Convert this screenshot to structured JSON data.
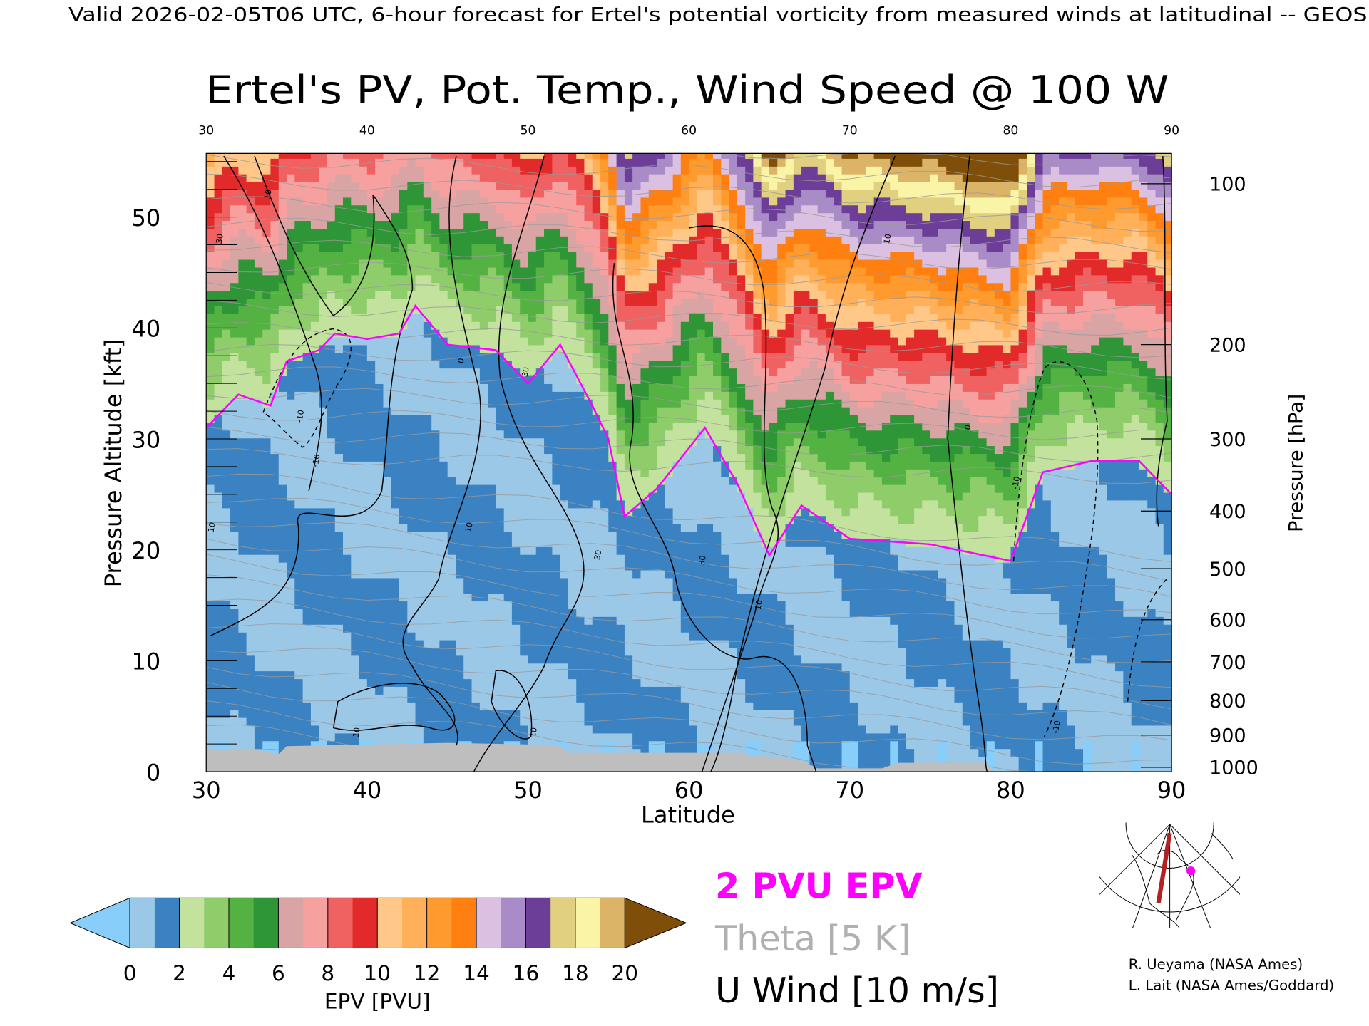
{
  "header": {
    "caption": "Valid 2026-02-05T06 UTC, 6-hour forecast for Ertel's potential vorticity from measured winds at latitudinal -- GEOS"
  },
  "chart_data": {
    "type": "heatmap",
    "title": "Ertel's PV, Pot. Temp., Wind Speed @ 100 W",
    "xlabel": "Latitude",
    "ylabel": "Pressure Altitude [kft]",
    "y2label": "Pressure [hPa]",
    "xlim": [
      30,
      90
    ],
    "ylim": [
      0,
      56
    ],
    "x_ticks": [
      "30",
      "40",
      "50",
      "60",
      "70",
      "80",
      "90"
    ],
    "x_tick_values": [
      30,
      40,
      50,
      60,
      70,
      80,
      90
    ],
    "y_ticks": [
      "0",
      "10",
      "20",
      "30",
      "40",
      "50"
    ],
    "y_tick_values": [
      0,
      10,
      20,
      30,
      40,
      50
    ],
    "pressure_ticks": [
      {
        "label": "100",
        "kft": 53
      },
      {
        "label": "200",
        "kft": 38.5
      },
      {
        "label": "300",
        "kft": 30
      },
      {
        "label": "400",
        "kft": 23.5
      },
      {
        "label": "500",
        "kft": 18.3
      },
      {
        "label": "600",
        "kft": 13.7
      },
      {
        "label": "700",
        "kft": 9.9
      },
      {
        "label": "800",
        "kft": 6.4
      },
      {
        "label": "900",
        "kft": 3.3
      },
      {
        "label": "1000",
        "kft": 0.4
      }
    ],
    "tropopause_2pvu": {
      "name": "2 PVU EPV",
      "lat": [
        30,
        32,
        34,
        35,
        37,
        38,
        40,
        42,
        43,
        45,
        48,
        50,
        52,
        54,
        55,
        56,
        58,
        61,
        63,
        65,
        67,
        70,
        75,
        80,
        82,
        85,
        88,
        90
      ],
      "kft": [
        31,
        34,
        33,
        37,
        38,
        39.5,
        39,
        39.5,
        42,
        38.5,
        38,
        35,
        38.5,
        33,
        30,
        23,
        25.5,
        31,
        26,
        19.5,
        24,
        21,
        20.5,
        19,
        27,
        28,
        28,
        25
      ]
    },
    "ground_kft": {
      "lat": [
        30,
        33,
        34.5,
        35,
        45,
        52,
        52.5,
        56,
        63,
        67,
        68,
        72,
        73,
        78.5,
        79,
        90
      ],
      "kft": [
        2,
        2,
        1.6,
        2.3,
        2.6,
        2.4,
        1.7,
        1.7,
        1.7,
        1.0,
        0.3,
        0.3,
        0.8,
        0.8,
        0,
        0
      ]
    },
    "wind_contour_labels": [
      {
        "label": "10",
        "lat": 34,
        "kft": 52
      },
      {
        "label": "30",
        "lat": 31,
        "kft": 48
      },
      {
        "label": "-10",
        "lat": 36,
        "kft": 32
      },
      {
        "label": "-10",
        "lat": 37,
        "kft": 28
      },
      {
        "label": "10",
        "lat": 30.5,
        "kft": 22
      },
      {
        "label": "0",
        "lat": 46,
        "kft": 37
      },
      {
        "label": "10",
        "lat": 46.5,
        "kft": 22
      },
      {
        "label": "30",
        "lat": 50,
        "kft": 36
      },
      {
        "label": "30",
        "lat": 54.5,
        "kft": 19.5
      },
      {
        "label": "30",
        "lat": 61,
        "kft": 19
      },
      {
        "label": "10",
        "lat": 64.5,
        "kft": 15
      },
      {
        "label": "10",
        "lat": 72.5,
        "kft": 48
      },
      {
        "label": "0",
        "lat": 77.5,
        "kft": 31
      },
      {
        "label": "-10",
        "lat": 80.5,
        "kft": 26
      },
      {
        "label": "-10",
        "lat": 83,
        "kft": 4
      },
      {
        "label": "10",
        "lat": 39.5,
        "kft": 3.5
      },
      {
        "label": "10",
        "lat": 50.5,
        "kft": 3.5
      }
    ],
    "colorbar": {
      "label": "EPV [PVU]",
      "ticks": [
        "0",
        "2",
        "4",
        "6",
        "8",
        "10",
        "12",
        "14",
        "16",
        "18",
        "20"
      ],
      "range": [
        0,
        20
      ],
      "colors": [
        "#9cc8e8",
        "#3a82c2",
        "#c2e29e",
        "#8fcd6a",
        "#54b243",
        "#2e9636",
        "#d8a4a4",
        "#f7a0a0",
        "#f06262",
        "#e22a2a",
        "#ffc888",
        "#ffb058",
        "#ff9a2e",
        "#ff8010",
        "#dcc0e2",
        "#a98bc8",
        "#6c3e98",
        "#e0d080",
        "#faf4a6",
        "#dcb468"
      ],
      "under_color": "#87cefa",
      "over_color": "#7f4f0a"
    }
  },
  "legend": {
    "epv": "2 PVU EPV",
    "theta": "Theta [5 K]",
    "wind": "U Wind [10 m/s]",
    "epv_color": "#ff00ff",
    "theta_color": "#b0b0b0",
    "wind_color": "#000000"
  },
  "credits": {
    "line1": "R. Ueyama (NASA Ames)",
    "line2": "L. Lait (NASA Ames/Goddard)"
  }
}
